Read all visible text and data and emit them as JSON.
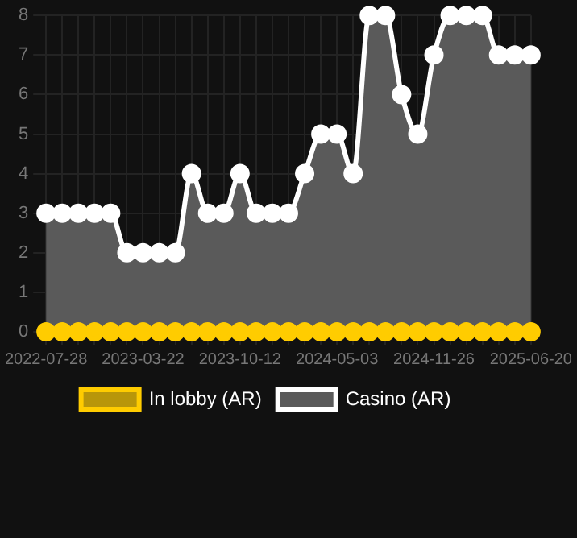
{
  "chart_data": {
    "type": "area",
    "categories": [
      "2022-07-28",
      null,
      null,
      null,
      null,
      null,
      "2023-03-22",
      null,
      null,
      null,
      null,
      null,
      "2023-10-12",
      null,
      null,
      null,
      null,
      null,
      "2024-05-03",
      null,
      null,
      null,
      null,
      null,
      "2024-11-26",
      null,
      null,
      null,
      null,
      null,
      "2025-06-20"
    ],
    "series": [
      {
        "name": "In lobby (AR)",
        "type": "line",
        "color": "#ffcc00",
        "values": [
          0,
          0,
          0,
          0,
          0,
          0,
          0,
          0,
          0,
          0,
          0,
          0,
          0,
          0,
          0,
          0,
          0,
          0,
          0,
          0,
          0,
          0,
          0,
          0,
          0,
          0,
          0,
          0,
          0,
          0,
          0
        ]
      },
      {
        "name": "Casino (AR)",
        "type": "area",
        "color": "#ffffff",
        "values": [
          3,
          3,
          3,
          3,
          3,
          2,
          2,
          2,
          2,
          4,
          3,
          3,
          4,
          3,
          3,
          3,
          4,
          5,
          5,
          4,
          8,
          8,
          6,
          5,
          7,
          8,
          8,
          8,
          7,
          7,
          7
        ]
      }
    ],
    "ylim": [
      0,
      8
    ],
    "yticks": [
      0,
      1,
      2,
      3,
      4,
      5,
      6,
      7,
      8
    ],
    "grid": true,
    "legend": "bottom",
    "marker": "circle",
    "line_style": "solid"
  }
}
